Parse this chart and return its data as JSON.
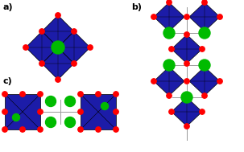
{
  "bg_color": "#ffffff",
  "blue": "#1c1ca8",
  "red": "#ff0000",
  "green": "#00bb00",
  "gray": "#999999",
  "lw_edge": 0.5,
  "lw_conn": 0.7,
  "r_red": 3.2,
  "r_green_large": 6.5,
  "r_green_small": 4.5,
  "label_a": "a)",
  "label_b": "b)",
  "label_c": "c)",
  "label_fs": 8
}
